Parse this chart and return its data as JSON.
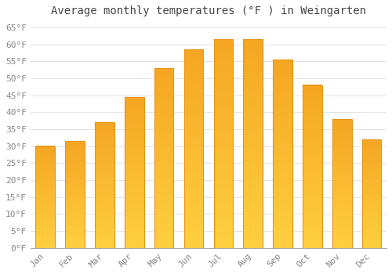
{
  "title": "Average monthly temperatures (°F ) in Weingarten",
  "months": [
    "Jan",
    "Feb",
    "Mar",
    "Apr",
    "May",
    "Jun",
    "Jul",
    "Aug",
    "Sep",
    "Oct",
    "Nov",
    "Dec"
  ],
  "values": [
    30,
    31.5,
    37,
    44.5,
    53,
    58.5,
    61.5,
    61.5,
    55.5,
    48,
    38,
    32
  ],
  "bar_color_top": "#F5A623",
  "bar_color_bottom": "#FFD040",
  "bar_edge_color": "#E8941A",
  "background_color": "#FFFFFF",
  "plot_background_color": "#FFFFFF",
  "grid_color": "#DDDDDD",
  "ylim": [
    0,
    67
  ],
  "yticks": [
    0,
    5,
    10,
    15,
    20,
    25,
    30,
    35,
    40,
    45,
    50,
    55,
    60,
    65
  ],
  "ytick_labels": [
    "0°F",
    "5°F",
    "10°F",
    "15°F",
    "20°F",
    "25°F",
    "30°F",
    "35°F",
    "40°F",
    "45°F",
    "50°F",
    "55°F",
    "60°F",
    "65°F"
  ],
  "title_fontsize": 10,
  "tick_fontsize": 8,
  "title_color": "#444444",
  "tick_color": "#888888",
  "font_family": "monospace",
  "bar_width": 0.65
}
